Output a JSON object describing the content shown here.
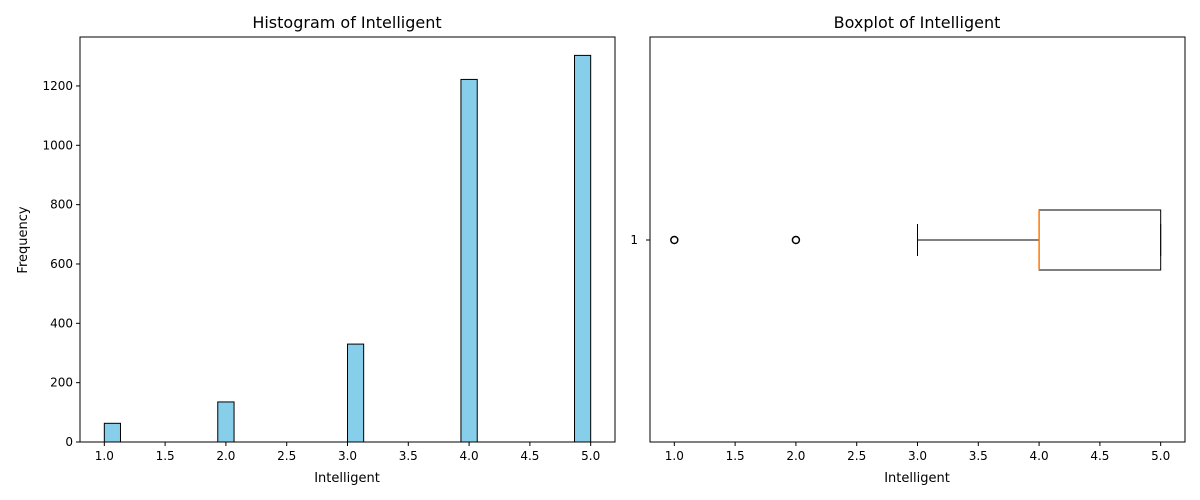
{
  "chart_data": [
    {
      "type": "bar",
      "title": "Histogram of Intelligent",
      "xlabel": "Intelligent",
      "ylabel": "Frequency",
      "xlim": [
        0.8,
        5.2
      ],
      "ylim": [
        0,
        1365
      ],
      "xticks": [
        "1.0",
        "1.5",
        "2.0",
        "2.5",
        "3.0",
        "3.5",
        "4.0",
        "4.5",
        "5.0"
      ],
      "yticks": [
        "0",
        "200",
        "400",
        "600",
        "800",
        "1000",
        "1200"
      ],
      "bins": [
        {
          "x0": 1.0,
          "x1": 1.133,
          "value": 63
        },
        {
          "x0": 1.933,
          "x1": 2.067,
          "value": 135
        },
        {
          "x0": 3.0,
          "x1": 3.133,
          "value": 330
        },
        {
          "x0": 3.933,
          "x1": 4.067,
          "value": 1222
        },
        {
          "x0": 4.867,
          "x1": 5.0,
          "value": 1303
        }
      ],
      "bar_color": "#87ceeb",
      "edge_color": "#000000",
      "grid": false
    },
    {
      "type": "boxplot",
      "title": "Boxplot of Intelligent",
      "xlabel": "Intelligent",
      "orientation": "horizontal",
      "xlim": [
        0.8,
        5.2
      ],
      "xticks": [
        "1.0",
        "1.5",
        "2.0",
        "2.5",
        "3.0",
        "3.5",
        "4.0",
        "4.5",
        "5.0"
      ],
      "yticks": [
        "1"
      ],
      "box": {
        "whisker_low": 3.0,
        "q1": 4.0,
        "median": 4.0,
        "q3": 5.0,
        "whisker_high": 5.0
      },
      "outliers": [
        1.0,
        2.0
      ],
      "median_color": "#ff7f0e",
      "grid": false
    }
  ]
}
